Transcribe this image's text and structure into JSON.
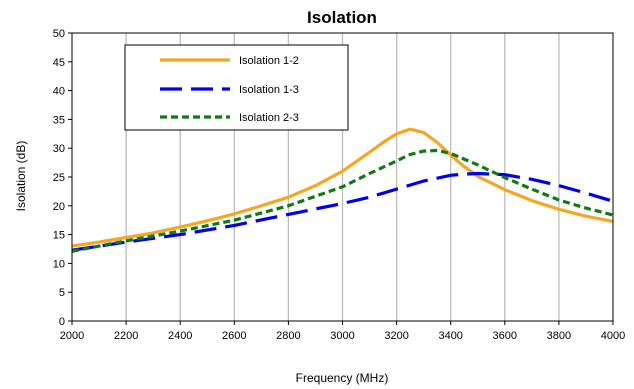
{
  "chart_data": {
    "type": "line",
    "title": "Isolation",
    "xlabel": "Frequency (MHz)",
    "ylabel": "Isolation (dB)",
    "xlim": [
      2000,
      4000
    ],
    "ylim": [
      0,
      50
    ],
    "xticks": [
      2000,
      2200,
      2400,
      2600,
      2800,
      3000,
      3200,
      3400,
      3600,
      3800,
      4000
    ],
    "yticks": [
      0,
      5,
      10,
      15,
      20,
      25,
      30,
      35,
      40,
      45,
      50
    ],
    "grid": {
      "vertical": true,
      "horizontal": false
    },
    "legend_position": "top-left",
    "series": [
      {
        "name": "Isolation 1-2",
        "color": "#F5A623",
        "dash": "solid",
        "x": [
          2000,
          2100,
          2200,
          2300,
          2400,
          2500,
          2600,
          2700,
          2800,
          2900,
          3000,
          3100,
          3150,
          3200,
          3250,
          3300,
          3350,
          3400,
          3450,
          3500,
          3600,
          3700,
          3800,
          3900,
          4000
        ],
        "y": [
          13.0,
          13.7,
          14.5,
          15.3,
          16.3,
          17.4,
          18.6,
          20.0,
          21.5,
          23.5,
          26.0,
          29.3,
          31.0,
          32.5,
          33.3,
          32.7,
          31.0,
          28.8,
          26.8,
          25.1,
          22.8,
          20.9,
          19.4,
          18.2,
          17.3
        ]
      },
      {
        "name": "Isolation 1-3",
        "color": "#0000EE",
        "dash": "long-dash",
        "x": [
          2000,
          2200,
          2400,
          2600,
          2800,
          3000,
          3100,
          3200,
          3300,
          3400,
          3450,
          3500,
          3600,
          3700,
          3800,
          3900,
          4000
        ],
        "y": [
          12.3,
          13.7,
          15.0,
          16.6,
          18.5,
          20.4,
          21.5,
          22.9,
          24.3,
          25.3,
          25.5,
          25.6,
          25.4,
          24.6,
          23.5,
          22.2,
          20.8
        ]
      },
      {
        "name": "Isolation 2-3",
        "color": "#117A11",
        "dash": "short-dash",
        "x": [
          2000,
          2200,
          2400,
          2600,
          2800,
          3000,
          3100,
          3200,
          3250,
          3300,
          3350,
          3400,
          3500,
          3600,
          3700,
          3800,
          3900,
          4000
        ],
        "y": [
          12.1,
          13.9,
          15.6,
          17.5,
          20.0,
          23.3,
          25.6,
          27.8,
          28.9,
          29.5,
          29.6,
          29.1,
          27.1,
          24.9,
          22.9,
          21.0,
          19.6,
          18.4
        ]
      }
    ]
  }
}
